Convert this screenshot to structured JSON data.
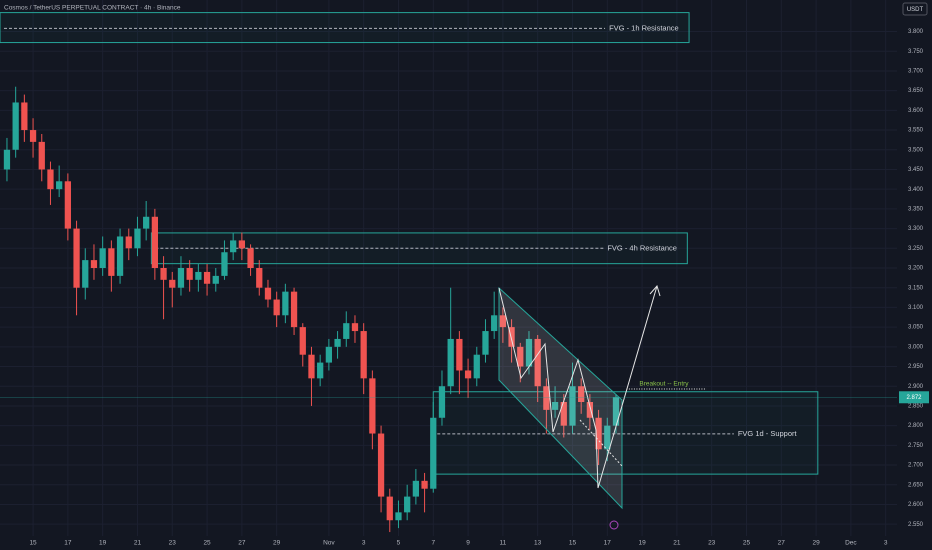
{
  "chart_data": {
    "type": "candlestick",
    "title": "Cosmos / TetherUS PERPETUAL CONTRACT · 4h · Binance",
    "unit": "USDT",
    "up_color": "#26a69a",
    "down_color": "#ef5350",
    "grid": true,
    "x": [
      -1.5,
      -1,
      -0.5,
      0,
      0.5,
      1,
      1.5,
      2,
      2.5,
      3,
      3.5,
      4,
      4.5,
      5,
      5.5,
      6,
      6.5,
      7,
      7.5,
      8,
      8.5,
      9,
      9.5,
      10,
      10.5,
      11,
      11.5,
      12,
      12.5,
      13,
      13.5,
      14,
      14.5,
      15,
      15.5,
      16,
      16.5,
      17,
      17.5,
      18,
      18.5,
      19,
      19.5,
      20,
      20.5,
      21,
      21.5,
      22,
      22.5,
      23,
      23.5,
      24,
      24.5,
      25,
      25.5,
      26,
      26.5,
      27,
      27.5,
      28,
      28.5,
      29,
      29.5,
      30,
      30.5,
      31,
      31.5,
      32,
      32.5,
      33,
      33.5
    ],
    "open": [
      3.45,
      3.5,
      3.62,
      3.55,
      3.52,
      3.45,
      3.4,
      3.42,
      3.3,
      3.15,
      3.22,
      3.2,
      3.25,
      3.18,
      3.28,
      3.25,
      3.3,
      3.33,
      3.2,
      3.17,
      3.15,
      3.2,
      3.17,
      3.19,
      3.16,
      3.18,
      3.24,
      3.27,
      3.25,
      3.2,
      3.15,
      3.12,
      3.08,
      3.14,
      3.05,
      2.98,
      2.92,
      2.96,
      3.0,
      3.02,
      3.06,
      3.04,
      2.92,
      2.78,
      2.62,
      2.56,
      2.58,
      2.62,
      2.66,
      2.64,
      2.82,
      2.9,
      3.02,
      2.94,
      2.92,
      2.98,
      3.04,
      3.08,
      3.05,
      3.0,
      2.95,
      3.02,
      2.9,
      2.84,
      2.86,
      2.8,
      2.9,
      2.86,
      2.82,
      2.74,
      2.8
    ],
    "high": [
      3.53,
      3.66,
      3.64,
      3.58,
      3.54,
      3.47,
      3.46,
      3.44,
      3.32,
      3.25,
      3.26,
      3.28,
      3.27,
      3.3,
      3.3,
      3.33,
      3.37,
      3.35,
      3.23,
      3.19,
      3.23,
      3.22,
      3.21,
      3.21,
      3.2,
      3.27,
      3.29,
      3.29,
      3.26,
      3.22,
      3.17,
      3.14,
      3.16,
      3.15,
      3.06,
      3.0,
      2.98,
      3.02,
      3.04,
      3.09,
      3.08,
      3.06,
      2.94,
      2.8,
      2.64,
      2.61,
      2.65,
      2.69,
      2.68,
      2.86,
      2.94,
      3.15,
      3.04,
      2.97,
      3.0,
      3.07,
      3.14,
      3.1,
      3.07,
      3.01,
      3.04,
      3.03,
      2.92,
      2.9,
      2.88,
      2.96,
      2.92,
      2.88,
      2.84,
      2.82,
      2.88
    ],
    "low": [
      3.42,
      3.48,
      3.52,
      3.48,
      3.42,
      3.36,
      3.38,
      3.27,
      3.08,
      3.12,
      3.17,
      3.18,
      3.14,
      3.16,
      3.22,
      3.23,
      3.27,
      3.17,
      3.07,
      3.1,
      3.13,
      3.14,
      3.14,
      3.13,
      3.14,
      3.17,
      3.22,
      3.22,
      3.18,
      3.13,
      3.1,
      3.05,
      3.06,
      3.03,
      2.95,
      2.85,
      2.9,
      2.94,
      2.97,
      3.0,
      3.01,
      2.88,
      2.74,
      2.58,
      2.53,
      2.54,
      2.56,
      2.6,
      2.58,
      2.63,
      2.8,
      2.88,
      2.88,
      2.87,
      2.9,
      2.96,
      3.02,
      3.01,
      2.96,
      2.91,
      2.93,
      2.86,
      2.78,
      2.82,
      2.77,
      2.78,
      2.83,
      2.79,
      2.7,
      2.71,
      2.78
    ],
    "close": [
      3.5,
      3.62,
      3.55,
      3.52,
      3.45,
      3.4,
      3.42,
      3.3,
      3.15,
      3.22,
      3.2,
      3.25,
      3.18,
      3.28,
      3.25,
      3.3,
      3.33,
      3.2,
      3.17,
      3.15,
      3.2,
      3.17,
      3.19,
      3.16,
      3.18,
      3.24,
      3.27,
      3.25,
      3.2,
      3.15,
      3.12,
      3.08,
      3.14,
      3.05,
      2.98,
      2.92,
      2.96,
      3.0,
      3.02,
      3.06,
      3.04,
      2.92,
      2.78,
      2.62,
      2.56,
      2.58,
      2.62,
      2.66,
      2.64,
      2.82,
      2.9,
      3.02,
      2.94,
      2.92,
      2.98,
      3.04,
      3.08,
      3.05,
      3.0,
      2.95,
      3.02,
      2.9,
      2.84,
      2.86,
      2.8,
      2.9,
      2.86,
      2.82,
      2.74,
      2.8,
      2.872
    ],
    "xlim": [
      -1.9,
      49.65
    ],
    "ylim": [
      2.52,
      3.88
    ],
    "xticks": [
      {
        "value": 0,
        "label": "15"
      },
      {
        "value": 2,
        "label": "17"
      },
      {
        "value": 4,
        "label": "19"
      },
      {
        "value": 6,
        "label": "21"
      },
      {
        "value": 8,
        "label": "23"
      },
      {
        "value": 10,
        "label": "25"
      },
      {
        "value": 12,
        "label": "27"
      },
      {
        "value": 14,
        "label": "29"
      },
      {
        "value": 17,
        "label": "Nov"
      },
      {
        "value": 19,
        "label": "3"
      },
      {
        "value": 21,
        "label": "5"
      },
      {
        "value": 23,
        "label": "7"
      },
      {
        "value": 25,
        "label": "9"
      },
      {
        "value": 27,
        "label": "11"
      },
      {
        "value": 29,
        "label": "13"
      },
      {
        "value": 31,
        "label": "15"
      },
      {
        "value": 33,
        "label": "17"
      },
      {
        "value": 35,
        "label": "19"
      },
      {
        "value": 37,
        "label": "21"
      },
      {
        "value": 39,
        "label": "23"
      },
      {
        "value": 41,
        "label": "25"
      },
      {
        "value": 43,
        "label": "27"
      },
      {
        "value": 45,
        "label": "29"
      },
      {
        "value": 47,
        "label": "Dec"
      },
      {
        "value": 49,
        "label": "3"
      }
    ],
    "yticks": [
      {
        "value": 2.55,
        "label": "2.550"
      },
      {
        "value": 2.6,
        "label": "2.600"
      },
      {
        "value": 2.65,
        "label": "2.650"
      },
      {
        "value": 2.7,
        "label": "2.700"
      },
      {
        "value": 2.75,
        "label": "2.750"
      },
      {
        "value": 2.8,
        "label": "2.800"
      },
      {
        "value": 2.85,
        "label": "2.850"
      },
      {
        "value": 2.9,
        "label": "2.900"
      },
      {
        "value": 2.95,
        "label": "2.950"
      },
      {
        "value": 3.0,
        "label": "3.000"
      },
      {
        "value": 3.05,
        "label": "3.050"
      },
      {
        "value": 3.1,
        "label": "3.100"
      },
      {
        "value": 3.15,
        "label": "3.150"
      },
      {
        "value": 3.2,
        "label": "3.200"
      },
      {
        "value": 3.25,
        "label": "3.250"
      },
      {
        "value": 3.3,
        "label": "3.300"
      },
      {
        "value": 3.35,
        "label": "3.350"
      },
      {
        "value": 3.4,
        "label": "3.400"
      },
      {
        "value": 3.45,
        "label": "3.450"
      },
      {
        "value": 3.5,
        "label": "3.500"
      },
      {
        "value": 3.55,
        "label": "3.550"
      },
      {
        "value": 3.6,
        "label": "3.600"
      },
      {
        "value": 3.65,
        "label": "3.650"
      },
      {
        "value": 3.7,
        "label": "3.700"
      },
      {
        "value": 3.75,
        "label": "3.750"
      },
      {
        "value": 3.8,
        "label": "3.800"
      }
    ],
    "zones": [
      {
        "label": "FVG - 1h Resistance",
        "top": 3.848,
        "bottom": 3.772,
        "mid": 3.808,
        "x_start": -1.9,
        "x_end": 37.7
      },
      {
        "label": "FVG - 4h Resistance",
        "top": 3.289,
        "bottom": 3.211,
        "mid": 3.25,
        "x_start": 6.8,
        "x_end": 37.6
      },
      {
        "label": "FVG 1d - Support",
        "top": 2.886,
        "bottom": 2.677,
        "mid": 2.779,
        "x_start": 23.0,
        "x_end": 45.1
      }
    ],
    "annotations": [
      {
        "text": "Breakout -- Entry",
        "y": 2.893,
        "x_start": 34.1,
        "x_end": 38.7
      }
    ]
  }
}
